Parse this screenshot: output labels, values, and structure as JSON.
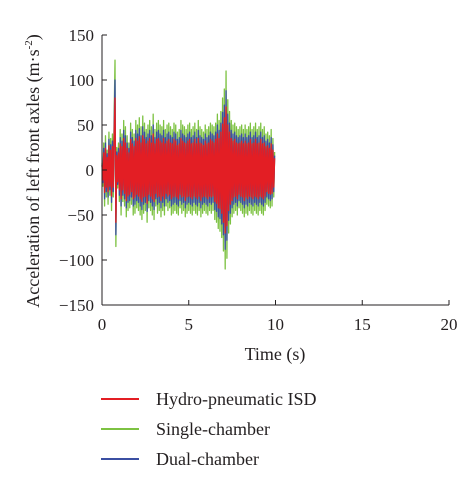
{
  "chart_data": {
    "type": "line",
    "title": "",
    "xlabel": "Time (s)",
    "ylabel": "Acceleration of left front axles (m·s",
    "ylabel_superscript": "-2",
    "ylabel_suffix": ")",
    "xlim": [
      0,
      20
    ],
    "ylim": [
      -150,
      150
    ],
    "xticks": [
      0,
      5,
      10,
      15,
      20
    ],
    "yticks": [
      150,
      100,
      50,
      0,
      -50,
      -100,
      -150
    ],
    "xtick_labels": [
      "0",
      "5",
      "10",
      "15",
      "20"
    ],
    "ytick_labels": [
      "150",
      "100",
      "50",
      "0",
      "−50",
      "−100",
      "−150"
    ],
    "grid": false,
    "legend_position": "bottom",
    "sample_step": 0.05,
    "series": [
      {
        "name": "Single-chamber",
        "color": "#7dc242",
        "values": [
          8,
          -18,
          30,
          -40,
          38,
          -30,
          22,
          -38,
          42,
          -28,
          35,
          -45,
          40,
          -30,
          60,
          122,
          -85,
          25,
          -20,
          30,
          -35,
          45,
          -50,
          40,
          -35,
          55,
          -40,
          48,
          -52,
          38,
          -45,
          30,
          -42,
          52,
          -38,
          45,
          -50,
          40,
          -48,
          55,
          -42,
          50,
          -45,
          58,
          -50,
          48,
          -55,
          60,
          -48,
          52,
          -45,
          45,
          -58,
          50,
          -42,
          55,
          -45,
          48,
          -50,
          62,
          -55,
          45,
          -40,
          52,
          -48,
          55,
          -45,
          50,
          -52,
          48,
          -45,
          55,
          -50,
          45,
          -40,
          50,
          -45,
          52,
          -42,
          48,
          -50,
          45,
          -48,
          52,
          -45,
          50,
          -48,
          42,
          -50,
          45,
          -42,
          55,
          -48,
          50,
          -45,
          48,
          -52,
          45,
          -48,
          50,
          -45,
          52,
          -48,
          45,
          -50,
          48,
          -45,
          52,
          -48,
          45,
          -50,
          55,
          -45,
          48,
          -52,
          45,
          -48,
          42,
          -45,
          50,
          -48,
          45,
          -50,
          48,
          -45,
          52,
          -48,
          50,
          -45,
          48,
          -55,
          52,
          -58,
          62,
          -65,
          55,
          -68,
          65,
          -75,
          80,
          -90,
          90,
          -110,
          110,
          -98,
          78,
          -70,
          65,
          -60,
          55,
          -52,
          50,
          -48,
          52,
          -45,
          48,
          -50,
          45,
          -42,
          48,
          -45,
          50,
          -48,
          45,
          -52,
          50,
          -48,
          45,
          -50,
          48,
          -45,
          52,
          -48,
          45,
          -50,
          48,
          -45,
          52,
          -48,
          45,
          -50,
          48,
          -45,
          52,
          -48,
          45,
          -50,
          48,
          -45,
          40,
          -38,
          42,
          -40,
          38,
          -42,
          45,
          -40,
          35,
          -30,
          20
        ]
      },
      {
        "name": "Dual-chamber",
        "color": "#3b4fa2",
        "values": [
          6,
          -14,
          24,
          -32,
          30,
          -24,
          18,
          -30,
          34,
          -22,
          28,
          -36,
          32,
          -24,
          48,
          100,
          -72,
          20,
          -16,
          24,
          -28,
          36,
          -40,
          32,
          -28,
          44,
          -32,
          38,
          -42,
          30,
          -36,
          24,
          -34,
          42,
          -30,
          36,
          -40,
          32,
          -38,
          44,
          -34,
          40,
          -36,
          46,
          -40,
          38,
          -44,
          48,
          -38,
          42,
          -36,
          36,
          -46,
          40,
          -34,
          44,
          -36,
          38,
          -40,
          50,
          -44,
          36,
          -32,
          42,
          -38,
          44,
          -36,
          40,
          -42,
          38,
          -36,
          44,
          -40,
          36,
          -32,
          40,
          -36,
          42,
          -34,
          38,
          -40,
          36,
          -38,
          42,
          -36,
          40,
          -38,
          34,
          -40,
          36,
          -34,
          44,
          -38,
          40,
          -36,
          38,
          -42,
          36,
          -38,
          40,
          -36,
          42,
          -38,
          36,
          -40,
          38,
          -36,
          42,
          -38,
          36,
          -40,
          44,
          -36,
          38,
          -42,
          36,
          -38,
          34,
          -36,
          40,
          -38,
          36,
          -40,
          38,
          -36,
          42,
          -38,
          40,
          -36,
          38,
          -44,
          42,
          -46,
          50,
          -52,
          44,
          -54,
          52,
          -60,
          64,
          -72,
          72,
          -88,
          88,
          -78,
          62,
          -56,
          52,
          -48,
          44,
          -42,
          40,
          -38,
          42,
          -36,
          38,
          -40,
          36,
          -34,
          38,
          -36,
          40,
          -38,
          36,
          -42,
          40,
          -38,
          36,
          -40,
          38,
          -36,
          42,
          -38,
          36,
          -40,
          38,
          -36,
          42,
          -38,
          36,
          -40,
          38,
          -36,
          42,
          -38,
          36,
          -40,
          38,
          -36,
          32,
          -30,
          34,
          -32,
          30,
          -34,
          36,
          -32,
          28,
          -24,
          16
        ]
      },
      {
        "name": "Hydro-pneumatic ISD",
        "color": "#e31e24",
        "values": [
          5,
          -11,
          19,
          -25,
          24,
          -19,
          14,
          -24,
          27,
          -18,
          22,
          -29,
          26,
          -19,
          38,
          80,
          -58,
          16,
          -13,
          19,
          -22,
          29,
          -32,
          26,
          -22,
          35,
          -26,
          30,
          -34,
          24,
          -29,
          19,
          -27,
          34,
          -24,
          29,
          -32,
          26,
          -30,
          35,
          -27,
          32,
          -29,
          37,
          -32,
          30,
          -35,
          38,
          -30,
          34,
          -29,
          29,
          -37,
          32,
          -27,
          35,
          -29,
          30,
          -32,
          40,
          -35,
          29,
          -26,
          34,
          -30,
          35,
          -29,
          32,
          -34,
          30,
          -29,
          35,
          -32,
          29,
          -26,
          32,
          -29,
          34,
          -27,
          30,
          -32,
          29,
          -30,
          34,
          -29,
          32,
          -30,
          27,
          -32,
          29,
          -27,
          35,
          -30,
          32,
          -29,
          30,
          -34,
          29,
          -30,
          32,
          -29,
          34,
          -30,
          29,
          -32,
          30,
          -29,
          34,
          -30,
          29,
          -32,
          35,
          -29,
          30,
          -34,
          29,
          -30,
          27,
          -29,
          32,
          -30,
          29,
          -32,
          30,
          -29,
          34,
          -30,
          32,
          -29,
          30,
          -35,
          34,
          -37,
          40,
          -42,
          35,
          -43,
          42,
          -48,
          51,
          -58,
          58,
          -70,
          70,
          -62,
          50,
          -45,
          42,
          -38,
          35,
          -34,
          32,
          -30,
          34,
          -29,
          30,
          -32,
          29,
          -27,
          30,
          -29,
          32,
          -30,
          29,
          -34,
          32,
          -30,
          29,
          -32,
          30,
          -29,
          34,
          -30,
          29,
          -32,
          30,
          -29,
          34,
          -30,
          29,
          -32,
          30,
          -29,
          34,
          -30,
          29,
          -32,
          30,
          -29,
          26,
          -24,
          27,
          -26,
          24,
          -27,
          29,
          -26,
          22,
          -19,
          13
        ]
      }
    ],
    "legend": [
      {
        "label": "Hydro-pneumatic ISD",
        "color": "#e31e24"
      },
      {
        "label": "Single-chamber",
        "color": "#7dc242"
      },
      {
        "label": "Dual-chamber",
        "color": "#3b4fa2"
      }
    ]
  }
}
